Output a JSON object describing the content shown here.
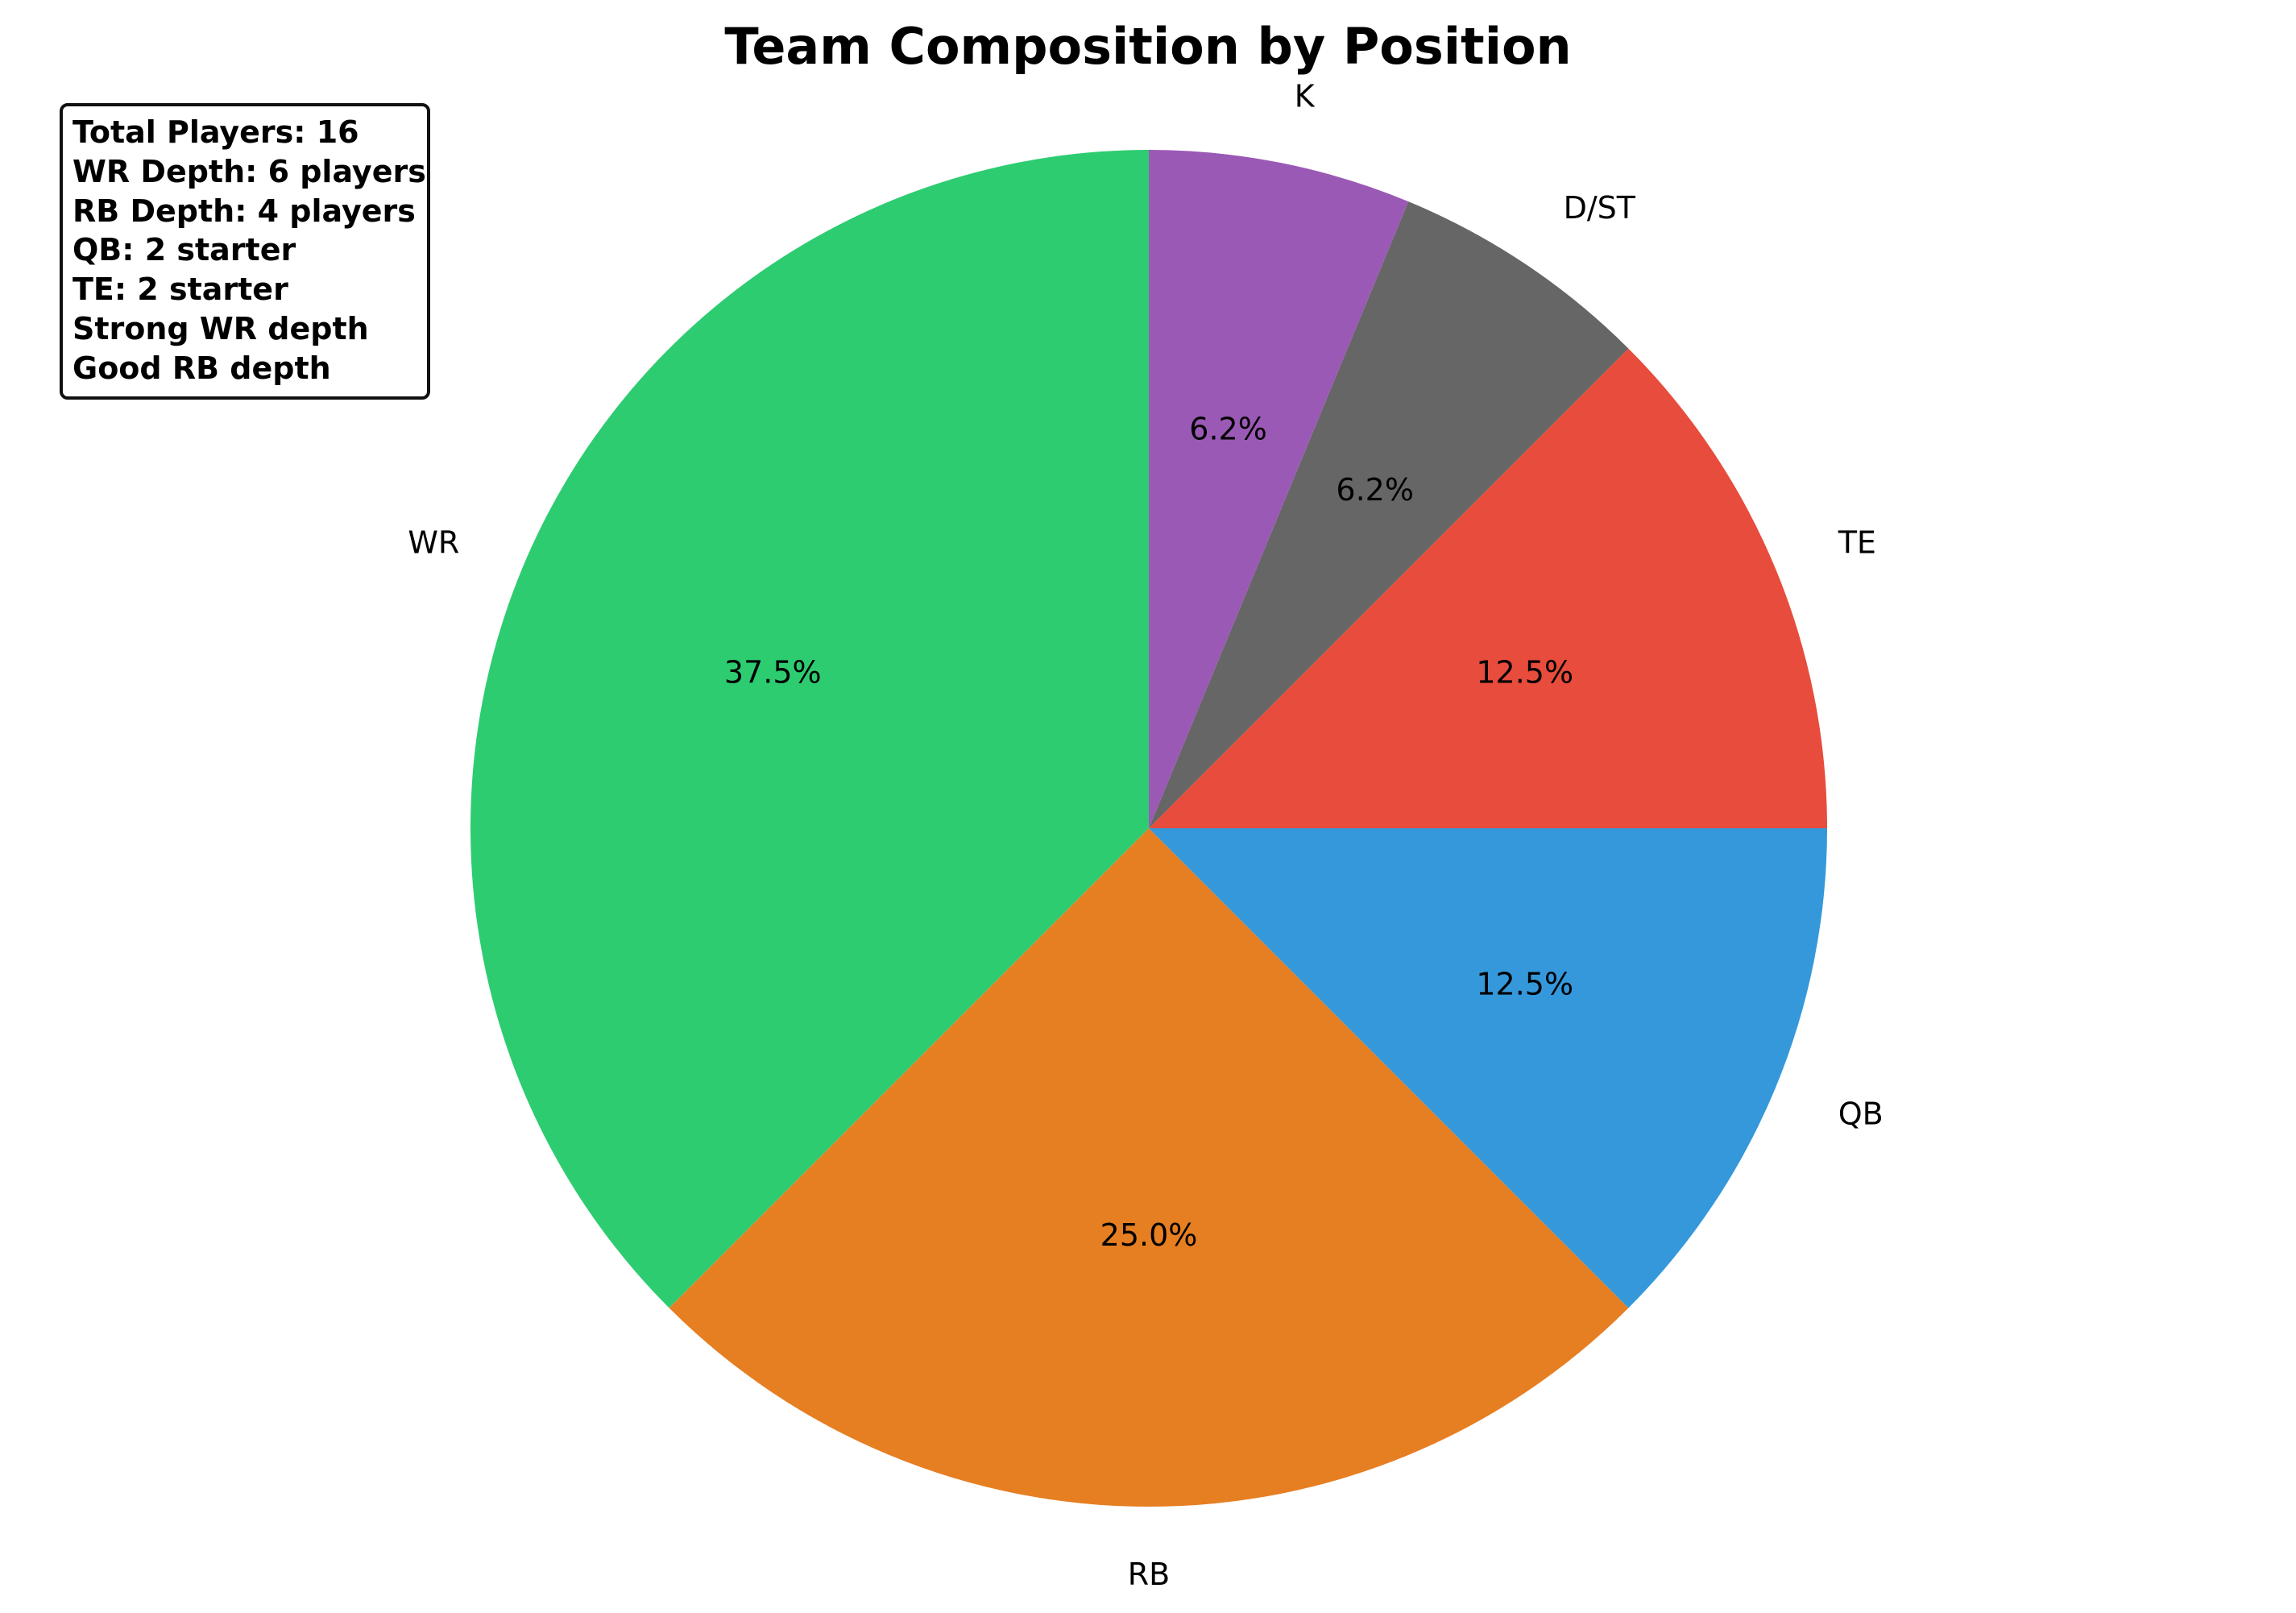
{
  "chart_data": {
    "type": "pie",
    "title": "Team Composition by Position",
    "categories": [
      "WR",
      "RB",
      "QB",
      "TE",
      "D/ST",
      "K"
    ],
    "values": [
      6,
      4,
      2,
      2,
      1,
      1
    ],
    "percent_labels": [
      "37.5%",
      "25.0%",
      "12.5%",
      "12.5%",
      "6.2%",
      "6.2%"
    ],
    "colors": [
      "#2ecc71",
      "#e67e22",
      "#3498db",
      "#e74c3c",
      "#666666",
      "#9b59b6"
    ],
    "start_angle_deg": 90,
    "direction": "counterclockwise",
    "legend": "none"
  },
  "summary": {
    "lines": [
      "Total Players: 16",
      "WR Depth: 6 players",
      "RB Depth: 4 players",
      "QB: 2 starter",
      "TE: 2 starter",
      "Strong WR depth",
      "Good RB depth"
    ]
  }
}
